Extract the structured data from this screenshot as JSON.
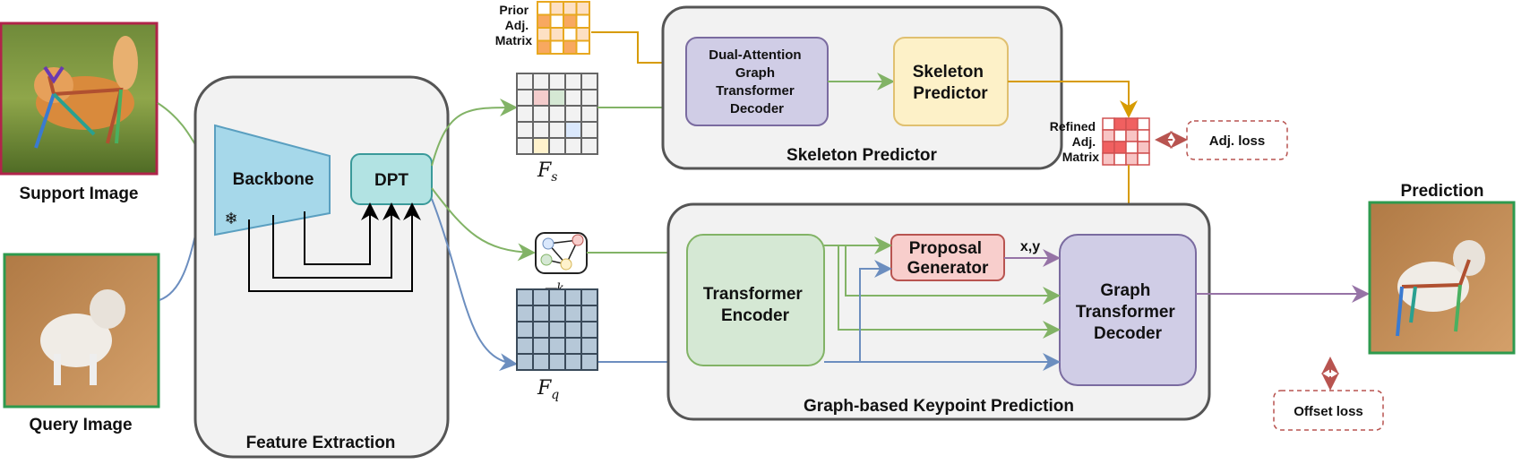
{
  "support_image": {
    "label": "Support Image"
  },
  "query_image": {
    "label": "Query Image"
  },
  "prediction": {
    "label": "Prediction"
  },
  "feature_extraction": {
    "title": "Feature Extraction",
    "backbone": "Backbone",
    "dpt": "DPT",
    "frozen_icon": "snowflake-icon"
  },
  "prior_matrix": {
    "label_lines": [
      "Prior",
      "Adj.",
      "Matrix"
    ],
    "cells": [
      [
        "w",
        "l",
        "l",
        "l"
      ],
      [
        "o",
        "w",
        "o",
        "w"
      ],
      [
        "l",
        "l",
        "w",
        "l"
      ],
      [
        "o",
        "w",
        "o",
        "w"
      ]
    ]
  },
  "refined_matrix": {
    "label_lines": [
      "Refined",
      "Adj.",
      "Matrix"
    ],
    "cells": [
      [
        "w",
        "d",
        "d",
        "w"
      ],
      [
        "p",
        "w",
        "p",
        "w"
      ],
      [
        "d",
        "d",
        "w",
        "p"
      ],
      [
        "p",
        "w",
        "p",
        "w"
      ]
    ]
  },
  "features": {
    "fs": "F",
    "fs_sub": "s",
    "fsk_sub": "s",
    "fsk_sup": "k",
    "fq_sub": "q"
  },
  "skeleton_predictor": {
    "title": "Skeleton Predictor",
    "decoder_lines": [
      "Dual-Attention",
      "Graph",
      "Transformer",
      "Decoder"
    ],
    "predictor_lines": [
      "Skeleton",
      "Predictor"
    ]
  },
  "keypoint_prediction": {
    "title": "Graph-based Keypoint Prediction",
    "encoder_lines": [
      "Transformer",
      "Encoder"
    ],
    "proposal_lines": [
      "Proposal",
      "Generator"
    ],
    "decoder_lines": [
      "Graph",
      "Transformer",
      "Decoder"
    ],
    "xy": "x,y"
  },
  "losses": {
    "adj": "Adj. loss",
    "offset": "Offset loss"
  },
  "colors": {
    "green": "#82b366",
    "blue": "#6c8ebf",
    "orange": "#d79b00",
    "purple": "#9673a6",
    "red": "#b85450",
    "support_border": "#b0244a",
    "query_border": "#2e9a4e"
  }
}
